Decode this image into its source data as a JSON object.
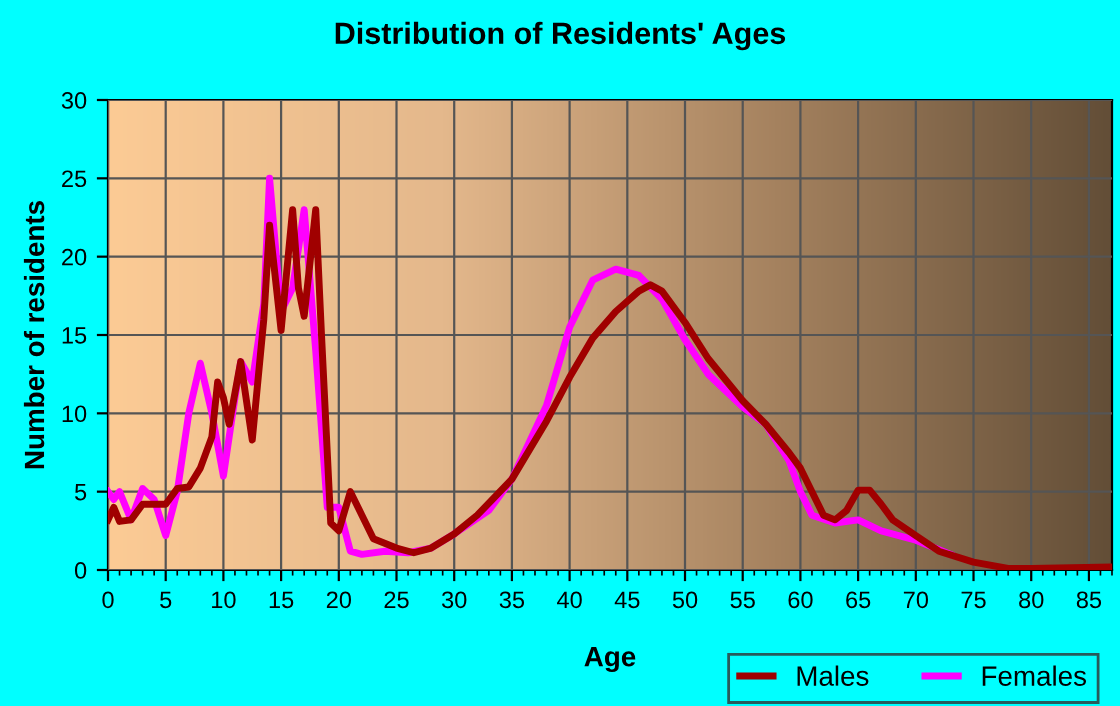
{
  "chart_data": {
    "type": "line",
    "title": "Distribution of Residents' Ages",
    "xlabel": "Age",
    "ylabel": "Number of residents",
    "xlim": [
      0,
      87
    ],
    "xticks": [
      0,
      5,
      10,
      15,
      20,
      25,
      30,
      35,
      40,
      45,
      50,
      55,
      60,
      65,
      70,
      75,
      80,
      85
    ],
    "ylim": [
      0,
      30
    ],
    "yticks": [
      0,
      5,
      10,
      15,
      20,
      25,
      30
    ],
    "grid": true,
    "legend": "bottom right",
    "series": [
      {
        "name": "Males",
        "color": "#a00000",
        "x": [
          0,
          0.5,
          1,
          2,
          3,
          4,
          5,
          6,
          7,
          8,
          9,
          9.5,
          10,
          10.5,
          11.5,
          12.5,
          13.5,
          14,
          15,
          16,
          16.5,
          17,
          18,
          18.5,
          19.3,
          20,
          21,
          22,
          23,
          25,
          26.5,
          28,
          30,
          32,
          35,
          38,
          40,
          42,
          44,
          46,
          47,
          48,
          50,
          52,
          55,
          57,
          59,
          60,
          61,
          62,
          63,
          64,
          65,
          66,
          67,
          68,
          70,
          72,
          75,
          78,
          80,
          87
        ],
        "values": [
          3.2,
          4,
          3.1,
          3.2,
          4.2,
          4.2,
          4.2,
          5.2,
          5.3,
          6.5,
          8.5,
          12,
          11,
          9.3,
          13.3,
          8.3,
          16,
          22,
          15.3,
          23,
          18,
          16.2,
          23,
          15,
          3,
          2.5,
          5,
          3.5,
          2,
          1.4,
          1.1,
          1.4,
          2.3,
          3.5,
          5.8,
          9.5,
          12.3,
          14.8,
          16.5,
          17.8,
          18.2,
          17.8,
          15.8,
          13.5,
          10.8,
          9.3,
          7.5,
          6.5,
          5,
          3.5,
          3.2,
          3.8,
          5.1,
          5.1,
          4.2,
          3.2,
          2.2,
          1.2,
          0.5,
          0.1,
          0.1,
          0.2
        ]
      },
      {
        "name": "Females",
        "color": "#ff00ff",
        "x": [
          0,
          0.5,
          1,
          2,
          3,
          4,
          5,
          6,
          7,
          8,
          9,
          10,
          11,
          11.5,
          12.5,
          13.5,
          14,
          15,
          16,
          17,
          18,
          19,
          20,
          21,
          22,
          24,
          26,
          28,
          30,
          33,
          35,
          38,
          40,
          42,
          44,
          46,
          48,
          50,
          52,
          55,
          57,
          59,
          60,
          61,
          63,
          65,
          67,
          70,
          73
        ],
        "values": [
          5,
          4.5,
          5,
          3.2,
          5.2,
          4.5,
          2.2,
          5,
          10,
          13.2,
          10,
          6,
          11,
          13.3,
          12,
          17,
          25,
          16.5,
          18,
          23,
          14,
          4,
          4,
          1.2,
          1,
          1.2,
          1.1,
          1.4,
          2.3,
          3.8,
          5.8,
          10.5,
          15.5,
          18.5,
          19.2,
          18.8,
          17.3,
          14.7,
          12.5,
          10.4,
          9.3,
          7,
          5,
          3.5,
          3,
          3.2,
          2.5,
          1.9,
          1
        ]
      }
    ]
  }
}
